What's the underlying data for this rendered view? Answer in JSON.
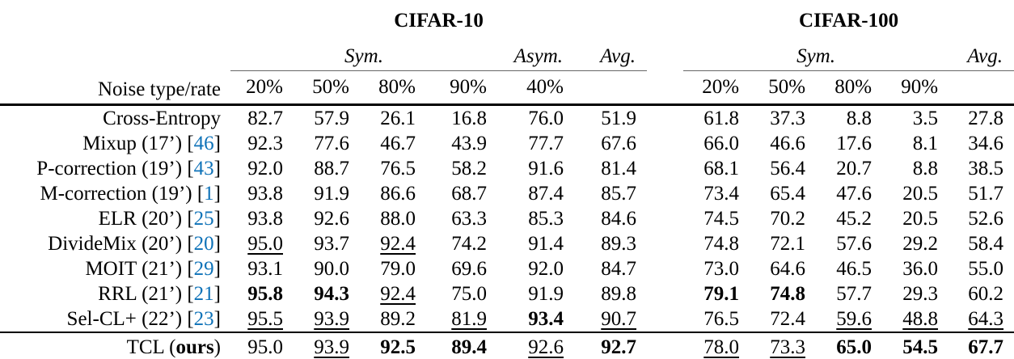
{
  "accent_color": "#0E72B8",
  "header": {
    "noise_label": "Noise type/rate",
    "cifar10": "CIFAR-10",
    "cifar100": "CIFAR-100",
    "sym": "Sym.",
    "asym": "Asym.",
    "avg": "Avg."
  },
  "cols": {
    "c10": [
      "20%",
      "50%",
      "80%",
      "90%",
      "40%"
    ],
    "c100": [
      "20%",
      "50%",
      "80%",
      "90%"
    ]
  },
  "rows": [
    {
      "method": [
        {
          "t": "Cross-Entropy",
          "s": "plain"
        }
      ],
      "c10": [
        {
          "v": "82.7",
          "s": ""
        },
        {
          "v": "57.9",
          "s": ""
        },
        {
          "v": "26.1",
          "s": ""
        },
        {
          "v": "16.8",
          "s": ""
        },
        {
          "v": "76.0",
          "s": ""
        },
        {
          "v": "51.9",
          "s": ""
        }
      ],
      "c100": [
        {
          "v": "61.8",
          "s": ""
        },
        {
          "v": "37.3",
          "s": ""
        },
        {
          "v": "8.8",
          "s": ""
        },
        {
          "v": "3.5",
          "s": ""
        },
        {
          "v": "27.8",
          "s": ""
        }
      ]
    },
    {
      "method": [
        {
          "t": "Mixup (17’) [",
          "s": "plain"
        },
        {
          "t": "46",
          "s": "cite"
        },
        {
          "t": "]",
          "s": "plain"
        }
      ],
      "c10": [
        {
          "v": "92.3",
          "s": ""
        },
        {
          "v": "77.6",
          "s": ""
        },
        {
          "v": "46.7",
          "s": ""
        },
        {
          "v": "43.9",
          "s": ""
        },
        {
          "v": "77.7",
          "s": ""
        },
        {
          "v": "67.6",
          "s": ""
        }
      ],
      "c100": [
        {
          "v": "66.0",
          "s": ""
        },
        {
          "v": "46.6",
          "s": ""
        },
        {
          "v": "17.6",
          "s": ""
        },
        {
          "v": "8.1",
          "s": ""
        },
        {
          "v": "34.6",
          "s": ""
        }
      ]
    },
    {
      "method": [
        {
          "t": "P-correction (19’) [",
          "s": "plain"
        },
        {
          "t": "43",
          "s": "cite"
        },
        {
          "t": "]",
          "s": "plain"
        }
      ],
      "c10": [
        {
          "v": "92.0",
          "s": ""
        },
        {
          "v": "88.7",
          "s": ""
        },
        {
          "v": "76.5",
          "s": ""
        },
        {
          "v": "58.2",
          "s": ""
        },
        {
          "v": "91.6",
          "s": ""
        },
        {
          "v": "81.4",
          "s": ""
        }
      ],
      "c100": [
        {
          "v": "68.1",
          "s": ""
        },
        {
          "v": "56.4",
          "s": ""
        },
        {
          "v": "20.7",
          "s": ""
        },
        {
          "v": "8.8",
          "s": ""
        },
        {
          "v": "38.5",
          "s": ""
        }
      ]
    },
    {
      "method": [
        {
          "t": "M-correction (19’) [",
          "s": "plain"
        },
        {
          "t": "1",
          "s": "cite"
        },
        {
          "t": "]",
          "s": "plain"
        }
      ],
      "c10": [
        {
          "v": "93.8",
          "s": ""
        },
        {
          "v": "91.9",
          "s": ""
        },
        {
          "v": "86.6",
          "s": ""
        },
        {
          "v": "68.7",
          "s": ""
        },
        {
          "v": "87.4",
          "s": ""
        },
        {
          "v": "85.7",
          "s": ""
        }
      ],
      "c100": [
        {
          "v": "73.4",
          "s": ""
        },
        {
          "v": "65.4",
          "s": ""
        },
        {
          "v": "47.6",
          "s": ""
        },
        {
          "v": "20.5",
          "s": ""
        },
        {
          "v": "51.7",
          "s": ""
        }
      ]
    },
    {
      "method": [
        {
          "t": "ELR (20’) [",
          "s": "plain"
        },
        {
          "t": "25",
          "s": "cite"
        },
        {
          "t": "]",
          "s": "plain"
        }
      ],
      "c10": [
        {
          "v": "93.8",
          "s": ""
        },
        {
          "v": "92.6",
          "s": ""
        },
        {
          "v": "88.0",
          "s": ""
        },
        {
          "v": "63.3",
          "s": ""
        },
        {
          "v": "85.3",
          "s": ""
        },
        {
          "v": "84.6",
          "s": ""
        }
      ],
      "c100": [
        {
          "v": "74.5",
          "s": ""
        },
        {
          "v": "70.2",
          "s": ""
        },
        {
          "v": "45.2",
          "s": ""
        },
        {
          "v": "20.5",
          "s": ""
        },
        {
          "v": "52.6",
          "s": ""
        }
      ]
    },
    {
      "method": [
        {
          "t": "DivideMix (20’) [",
          "s": "plain"
        },
        {
          "t": "20",
          "s": "cite"
        },
        {
          "t": "]",
          "s": "plain"
        }
      ],
      "c10": [
        {
          "v": "95.0",
          "s": "u"
        },
        {
          "v": "93.7",
          "s": ""
        },
        {
          "v": "92.4",
          "s": "u"
        },
        {
          "v": "74.2",
          "s": ""
        },
        {
          "v": "91.4",
          "s": ""
        },
        {
          "v": "89.3",
          "s": ""
        }
      ],
      "c100": [
        {
          "v": "74.8",
          "s": ""
        },
        {
          "v": "72.1",
          "s": ""
        },
        {
          "v": "57.6",
          "s": ""
        },
        {
          "v": "29.2",
          "s": ""
        },
        {
          "v": "58.4",
          "s": ""
        }
      ]
    },
    {
      "method": [
        {
          "t": "MOIT (21’) [",
          "s": "plain"
        },
        {
          "t": "29",
          "s": "cite"
        },
        {
          "t": "]",
          "s": "plain"
        }
      ],
      "c10": [
        {
          "v": "93.1",
          "s": ""
        },
        {
          "v": "90.0",
          "s": ""
        },
        {
          "v": "79.0",
          "s": ""
        },
        {
          "v": "69.6",
          "s": ""
        },
        {
          "v": "92.0",
          "s": ""
        },
        {
          "v": "84.7",
          "s": ""
        }
      ],
      "c100": [
        {
          "v": "73.0",
          "s": ""
        },
        {
          "v": "64.6",
          "s": ""
        },
        {
          "v": "46.5",
          "s": ""
        },
        {
          "v": "36.0",
          "s": ""
        },
        {
          "v": "55.0",
          "s": ""
        }
      ]
    },
    {
      "method": [
        {
          "t": "RRL (21’) [",
          "s": "plain"
        },
        {
          "t": "21",
          "s": "cite"
        },
        {
          "t": "]",
          "s": "plain"
        }
      ],
      "c10": [
        {
          "v": "95.8",
          "s": "b"
        },
        {
          "v": "94.3",
          "s": "b"
        },
        {
          "v": "92.4",
          "s": "u"
        },
        {
          "v": "75.0",
          "s": ""
        },
        {
          "v": "91.9",
          "s": ""
        },
        {
          "v": "89.8",
          "s": ""
        }
      ],
      "c100": [
        {
          "v": "79.1",
          "s": "b"
        },
        {
          "v": "74.8",
          "s": "b"
        },
        {
          "v": "57.7",
          "s": ""
        },
        {
          "v": "29.3",
          "s": ""
        },
        {
          "v": "60.2",
          "s": ""
        }
      ]
    },
    {
      "method": [
        {
          "t": "Sel-CL+ (22’) [",
          "s": "plain"
        },
        {
          "t": "23",
          "s": "cite"
        },
        {
          "t": "]",
          "s": "plain"
        }
      ],
      "c10": [
        {
          "v": "95.5",
          "s": "u"
        },
        {
          "v": "93.9",
          "s": "u"
        },
        {
          "v": "89.2",
          "s": ""
        },
        {
          "v": "81.9",
          "s": "u"
        },
        {
          "v": "93.4",
          "s": "b"
        },
        {
          "v": "90.7",
          "s": "u"
        }
      ],
      "c100": [
        {
          "v": "76.5",
          "s": ""
        },
        {
          "v": "72.4",
          "s": ""
        },
        {
          "v": "59.6",
          "s": "u"
        },
        {
          "v": "48.8",
          "s": "u"
        },
        {
          "v": "64.3",
          "s": "u"
        }
      ]
    },
    {
      "method": [
        {
          "t": "TCL (",
          "s": "plain"
        },
        {
          "t": "ours",
          "s": "bold"
        },
        {
          "t": ")",
          "s": "plain"
        }
      ],
      "c10": [
        {
          "v": "95.0",
          "s": ""
        },
        {
          "v": "93.9",
          "s": "u"
        },
        {
          "v": "92.5",
          "s": "b"
        },
        {
          "v": "89.4",
          "s": "b"
        },
        {
          "v": "92.6",
          "s": "u"
        },
        {
          "v": "92.7",
          "s": "b"
        }
      ],
      "c100": [
        {
          "v": "78.0",
          "s": "u"
        },
        {
          "v": "73.3",
          "s": "u"
        },
        {
          "v": "65.0",
          "s": "b"
        },
        {
          "v": "54.5",
          "s": "b"
        },
        {
          "v": "67.7",
          "s": "b"
        }
      ]
    }
  ]
}
